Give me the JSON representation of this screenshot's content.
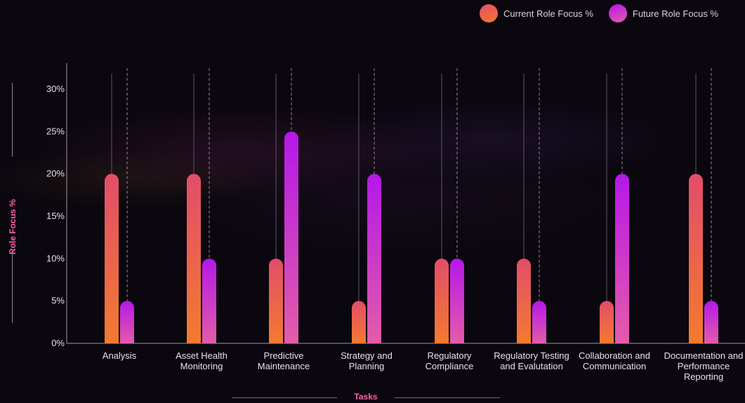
{
  "chart_data": {
    "type": "bar",
    "categories": [
      "Analysis",
      "Asset Health Monitoring",
      "Predictive Maintenance",
      "Strategy and Planning",
      "Regulatory Compliance",
      "Regulatory Testing and Evalutation",
      "Collaboration and Communication",
      "Documentation and Performance Reporting"
    ],
    "series": [
      {
        "name": "Current Role Focus %",
        "values": [
          20,
          20,
          10,
          5,
          10,
          10,
          5,
          20
        ]
      },
      {
        "name": "Future Role Focus %",
        "values": [
          5,
          10,
          25,
          20,
          10,
          5,
          20,
          5
        ]
      }
    ],
    "title": "",
    "xlabel": "Tasks",
    "ylabel": "Role Focus %",
    "ylim": [
      0,
      30
    ],
    "yticks": [
      "0%",
      "5%",
      "10%",
      "15%",
      "20%",
      "25%",
      "30%"
    ],
    "legend_position": "top-right",
    "grid": false,
    "colors": {
      "current_top": "#e24d6a",
      "current_bottom": "#f47a2f",
      "future_top": "#b418e8",
      "future_bottom": "#e45ca8"
    }
  }
}
